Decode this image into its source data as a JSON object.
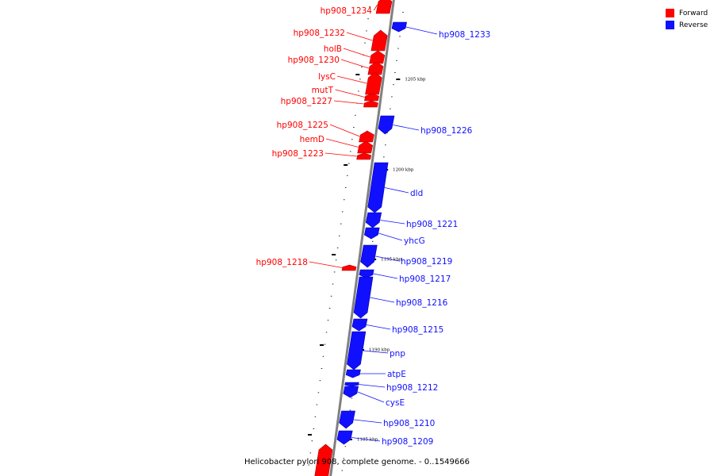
{
  "colors": {
    "forward": "#ff0000",
    "reverse": "#1010ff",
    "backbone": "#808080"
  },
  "legend": {
    "forward_label": "Forward",
    "reverse_label": "Reverse"
  },
  "caption": "Helicobacter pylori 908, complete genome. - 0..1549666",
  "tick_labels": [
    "1205 kbp",
    "1200 kbp",
    "1195 kbp",
    "1190 kbp",
    "1185 kbp"
  ],
  "genes": [
    {
      "name": "hp908_1234",
      "strand": "forward"
    },
    {
      "name": "hp908_1233",
      "strand": "reverse"
    },
    {
      "name": "hp908_1232",
      "strand": "forward"
    },
    {
      "name": "holB",
      "strand": "forward"
    },
    {
      "name": "hp908_1230",
      "strand": "forward"
    },
    {
      "name": "lysC",
      "strand": "forward"
    },
    {
      "name": "mutT",
      "strand": "forward"
    },
    {
      "name": "hp908_1227",
      "strand": "forward"
    },
    {
      "name": "hp908_1226",
      "strand": "reverse"
    },
    {
      "name": "hp908_1225",
      "strand": "forward"
    },
    {
      "name": "hemD",
      "strand": "forward"
    },
    {
      "name": "hp908_1223",
      "strand": "forward"
    },
    {
      "name": "dld",
      "strand": "reverse"
    },
    {
      "name": "hp908_1221",
      "strand": "reverse"
    },
    {
      "name": "yhcG",
      "strand": "reverse"
    },
    {
      "name": "hp908_1219",
      "strand": "reverse"
    },
    {
      "name": "hp908_1218",
      "strand": "forward"
    },
    {
      "name": "hp908_1217",
      "strand": "reverse"
    },
    {
      "name": "hp908_1216",
      "strand": "reverse"
    },
    {
      "name": "hp908_1215",
      "strand": "reverse"
    },
    {
      "name": "pnp",
      "strand": "reverse"
    },
    {
      "name": "atpE",
      "strand": "reverse"
    },
    {
      "name": "hp908_1212",
      "strand": "reverse"
    },
    {
      "name": "cysE",
      "strand": "reverse"
    },
    {
      "name": "hp908_1210",
      "strand": "reverse"
    },
    {
      "name": "hp908_1209",
      "strand": "reverse"
    },
    {
      "name": "",
      "strand": "forward"
    }
  ]
}
